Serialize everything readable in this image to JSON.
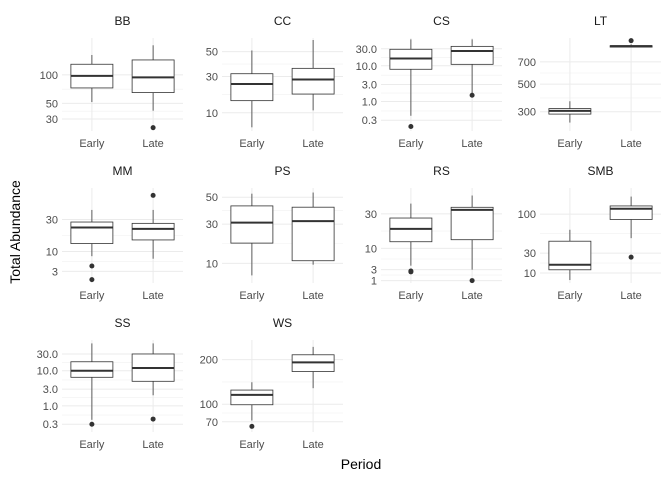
{
  "chart_data": {
    "type": "boxplot",
    "xlabel": "Period",
    "ylabel": "Total Abundance",
    "grid": true,
    "y_scale": "sqrt",
    "categories": [
      "Early",
      "Late"
    ],
    "panels": [
      {
        "title": "BB",
        "yticks": [
          "30",
          "50",
          "100"
        ],
        "ytick_values": [
          30,
          50,
          100
        ],
        "ylim": [
          18,
          190
        ],
        "boxes": [
          {
            "category": "Early",
            "whisker_low": 52,
            "q1": 75,
            "median": 98,
            "q3": 123,
            "whisker_high": 145,
            "outliers": []
          },
          {
            "category": "Late",
            "whisker_low": 40,
            "q1": 67,
            "median": 95,
            "q3": 133,
            "whisker_high": 170,
            "outliers": [
              21
            ]
          }
        ]
      },
      {
        "title": "CC",
        "yticks": [
          "10",
          "30",
          "50"
        ],
        "ytick_values": [
          10,
          30,
          50
        ],
        "ylim": [
          4,
          63
        ],
        "boxes": [
          {
            "category": "Early",
            "whisker_low": 5,
            "q1": 15.5,
            "median": 25,
            "q3": 32,
            "whisker_high": 51,
            "outliers": []
          },
          {
            "category": "Late",
            "whisker_low": 11,
            "q1": 19,
            "median": 28,
            "q3": 36,
            "whisker_high": 61,
            "outliers": []
          }
        ]
      },
      {
        "title": "CS",
        "yticks": [
          "0.3",
          "1.0",
          "3.0",
          "10.0",
          "30.0"
        ],
        "ytick_values": [
          0.3,
          1,
          3,
          10,
          30
        ],
        "ylim": [
          0.15,
          60
        ],
        "y_scale": "log",
        "boxes": [
          {
            "category": "Early",
            "whisker_low": 0.4,
            "q1": 8,
            "median": 16,
            "q3": 29,
            "whisker_high": 55,
            "outliers": [
              0.2
            ]
          },
          {
            "category": "Late",
            "whisker_low": 1.5,
            "q1": 11,
            "median": 26,
            "q3": 35,
            "whisker_high": 55,
            "outliers": [
              1.5
            ]
          }
        ]
      },
      {
        "title": "LT",
        "yticks": [
          "300",
          "500",
          "700"
        ],
        "ytick_values": [
          300,
          500,
          700
        ],
        "ylim": [
          190,
          950
        ],
        "boxes": [
          {
            "category": "Early",
            "whisker_low": 235,
            "q1": 285,
            "median": 305,
            "q3": 320,
            "whisker_high": 370,
            "outliers": []
          },
          {
            "category": "Late",
            "whisker_low": 850,
            "q1": 850,
            "median": 860,
            "q3": 865,
            "whisker_high": 880,
            "outliers": [
              920
            ]
          }
        ]
      },
      {
        "title": "MM",
        "yticks": [
          "3",
          "10",
          "30"
        ],
        "ytick_values": [
          3,
          10,
          30
        ],
        "ylim": [
          0.8,
          60
        ],
        "boxes": [
          {
            "category": "Early",
            "whisker_low": 8,
            "q1": 14,
            "median": 24,
            "q3": 28,
            "whisker_high": 38,
            "outliers": [
              4.5,
              1.3
            ]
          },
          {
            "category": "Late",
            "whisker_low": 7,
            "q1": 16,
            "median": 23,
            "q3": 27,
            "whisker_high": 38,
            "outliers": [
              52
            ]
          }
        ]
      },
      {
        "title": "PS",
        "yticks": [
          "10",
          "30",
          "50"
        ],
        "ytick_values": [
          10,
          30,
          50
        ],
        "ylim": [
          4,
          58
        ],
        "boxes": [
          {
            "category": "Early",
            "whisker_low": 6,
            "q1": 19,
            "median": 31,
            "q3": 43,
            "whisker_high": 53,
            "outliers": []
          },
          {
            "category": "Late",
            "whisker_low": 9.5,
            "q1": 11,
            "median": 32,
            "q3": 42,
            "whisker_high": 54,
            "outliers": []
          }
        ]
      },
      {
        "title": "RS",
        "yticks": [
          "1",
          "3",
          "10",
          "30"
        ],
        "ytick_values": [
          1,
          3,
          10,
          30
        ],
        "ylim": [
          0.7,
          52
        ],
        "boxes": [
          {
            "category": "Early",
            "whisker_low": 4,
            "q1": 13,
            "median": 20,
            "q3": 27,
            "whisker_high": 38,
            "outliers": [
              2.7,
              2.5
            ]
          },
          {
            "category": "Late",
            "whisker_low": 3,
            "q1": 14,
            "median": 33,
            "q3": 35,
            "whisker_high": 45,
            "outliers": [
              1
            ]
          }
        ]
      },
      {
        "title": "SMB",
        "yticks": [
          "10",
          "30",
          "100"
        ],
        "ytick_values": [
          10,
          30,
          100
        ],
        "ylim": [
          4,
          170
        ],
        "boxes": [
          {
            "category": "Early",
            "whisker_low": 5.5,
            "q1": 12.5,
            "median": 17,
            "q3": 47,
            "whisker_high": 67,
            "outliers": []
          },
          {
            "category": "Late",
            "whisker_low": 52,
            "q1": 88,
            "median": 113,
            "q3": 120,
            "whisker_high": 145,
            "outliers": [
              25
            ]
          }
        ]
      },
      {
        "title": "SS",
        "yticks": [
          "0.3",
          "1.0",
          "3.0",
          "10.0",
          "30.0"
        ],
        "ytick_values": [
          0.3,
          1,
          3,
          10,
          30
        ],
        "ylim": [
          0.18,
          75
        ],
        "y_scale": "log",
        "boxes": [
          {
            "category": "Early",
            "whisker_low": 0.4,
            "q1": 6.5,
            "median": 10,
            "q3": 18,
            "whisker_high": 60,
            "outliers": [
              0.3
            ]
          },
          {
            "category": "Late",
            "whisker_low": 2,
            "q1": 5,
            "median": 12,
            "q3": 30,
            "whisker_high": 60,
            "outliers": [
              0.42
            ]
          }
        ]
      },
      {
        "title": "WS",
        "yticks": [
          "70",
          "100",
          "200"
        ],
        "ytick_values": [
          70,
          100,
          200
        ],
        "ylim": [
          55,
          255
        ],
        "boxes": [
          {
            "category": "Early",
            "whisker_low": 72,
            "q1": 99,
            "median": 118,
            "q3": 128,
            "whisker_high": 145,
            "outliers": [
              63
            ]
          },
          {
            "category": "Late",
            "whisker_low": 132,
            "q1": 170,
            "median": 193,
            "q3": 213,
            "whisker_high": 235,
            "outliers": []
          }
        ]
      }
    ]
  }
}
